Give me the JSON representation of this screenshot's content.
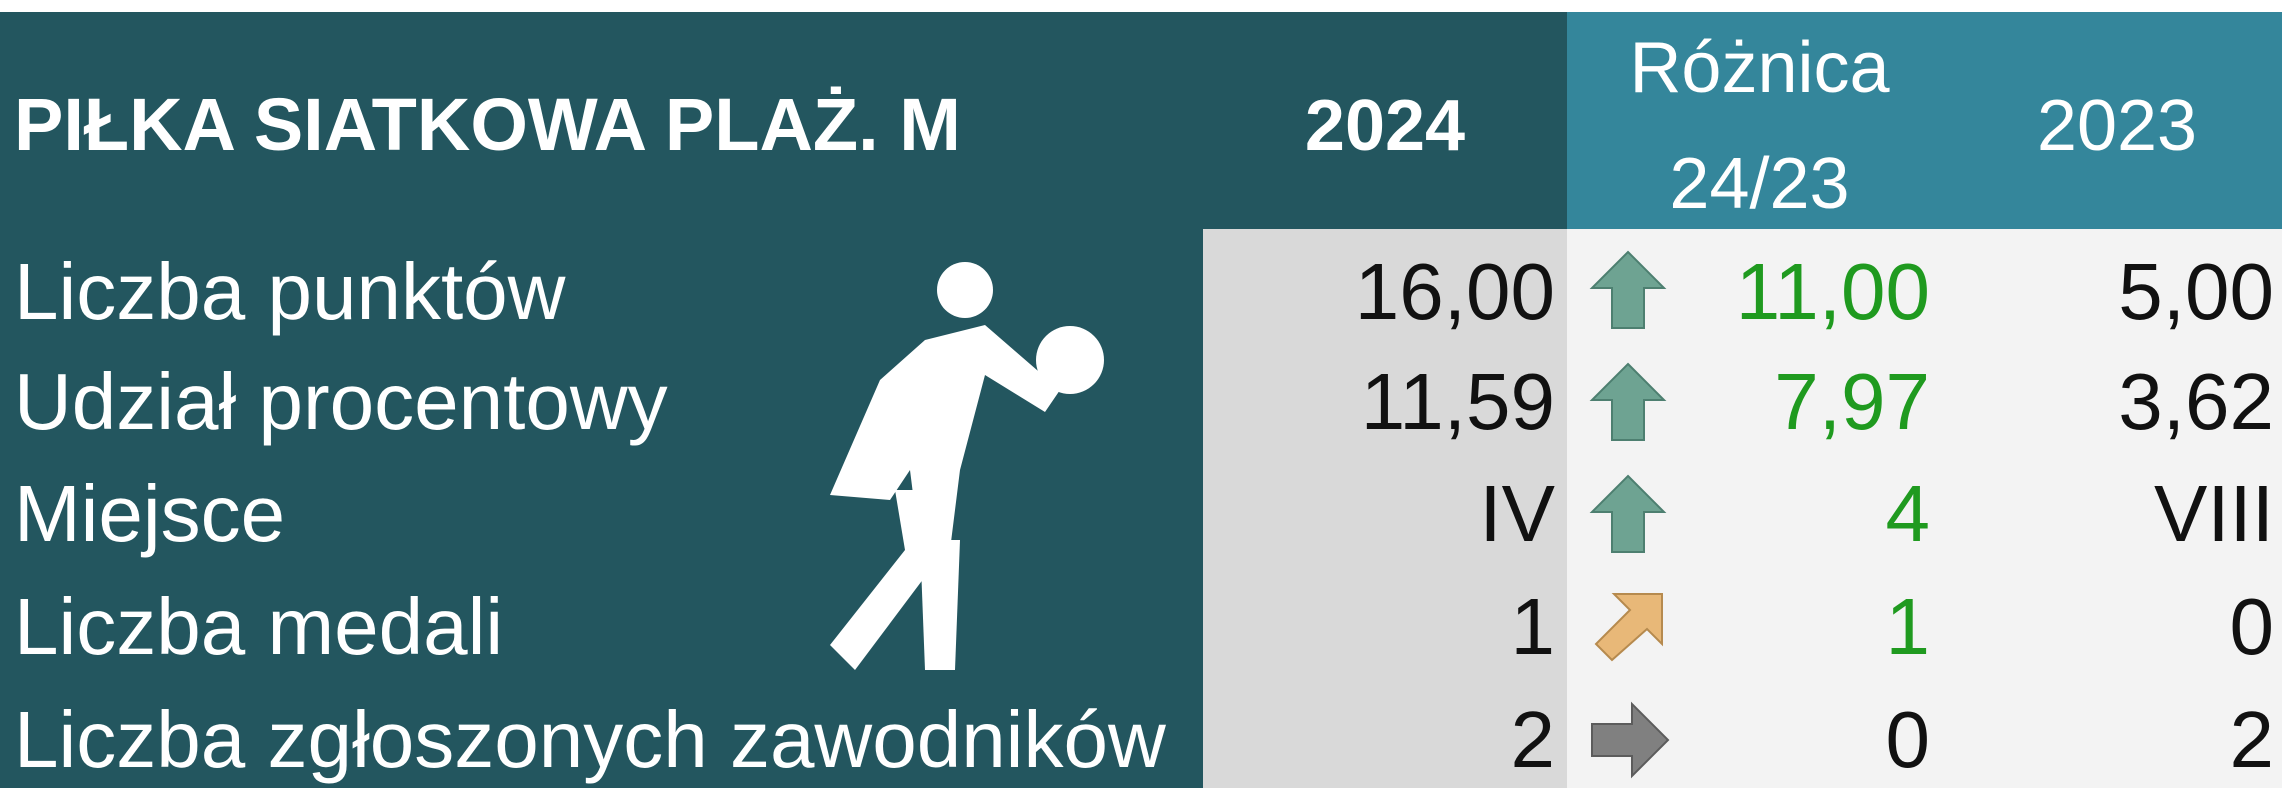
{
  "header": {
    "title": "PIŁKA SIATKOWA PLAŻ. M",
    "col_2024": "2024",
    "col_diff_line1": "Różnica",
    "col_diff_line2": "24/23",
    "col_2023": "2023"
  },
  "table": {
    "rows": [
      [
        "Liczba punktów",
        "16,00",
        "11,00",
        "5,00"
      ],
      [
        "Udział procentowy",
        "11,59",
        "7,97",
        "3,62"
      ],
      [
        "Miejsce",
        "IV",
        "4",
        "VIII"
      ],
      [
        "Liczba medali",
        "1",
        "1",
        "0"
      ],
      [
        "Liczba zgłoszonych zawodników",
        "2",
        "0",
        "2"
      ]
    ]
  }
}
